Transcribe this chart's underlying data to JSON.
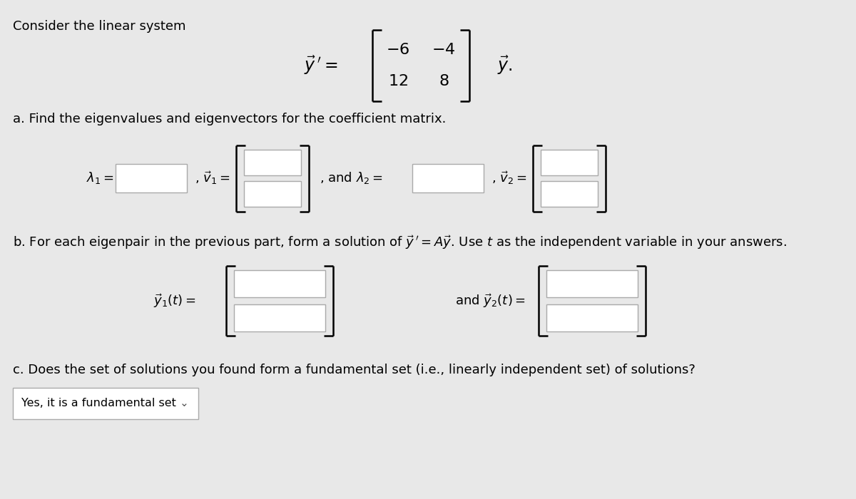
{
  "bg_color": "#e8e8e8",
  "title_text": "Consider the linear system",
  "part_a_text": "a. Find the eigenvalues and eigenvectors for the coefficient matrix.",
  "part_b_text": "b. For each eigenpair in the previous part, form a solution of $\\vec{y}\\,' = A\\vec{y}$. Use $t$ as the independent variable in your answers.",
  "part_c_text": "c. Does the set of solutions you found form a fundamental set (i.e., linearly independent set) of solutions?",
  "dropdown_text": "Yes, it is a fundamental set",
  "font_size_title": 13,
  "font_size_body": 13,
  "box_edge_color": "#aaaaaa",
  "box_face_color": "white",
  "bracket_color": "black",
  "text_color": "black"
}
